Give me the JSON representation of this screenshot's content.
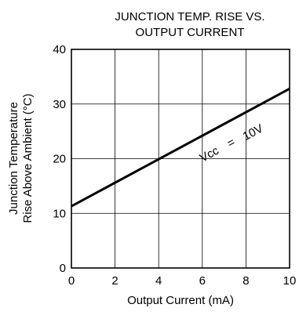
{
  "chart_data": {
    "type": "line",
    "title_lines": [
      "JUNCTION TEMP. RISE VS.",
      "OUTPUT CURRENT"
    ],
    "xlabel": "Output Current (mA)",
    "ylabel_lines": [
      "Junction Temperature",
      "Rise Above Ambient (°C)"
    ],
    "xlim": [
      0,
      10
    ],
    "ylim": [
      0,
      40
    ],
    "x_ticks": [
      0,
      2,
      4,
      6,
      8,
      10
    ],
    "y_ticks": [
      0,
      10,
      20,
      30,
      40
    ],
    "x_tick_labels": [
      "0",
      "2",
      "4",
      "6",
      "8",
      "10"
    ],
    "y_tick_labels": [
      "0",
      "10",
      "20",
      "30",
      "40"
    ],
    "grid": true,
    "series": [
      {
        "name": "Vcc = 10V",
        "x": [
          0,
          10
        ],
        "y": [
          11.3,
          32.8
        ]
      }
    ],
    "annotations": [
      {
        "text": "Vcc",
        "x": 6.4,
        "y": 20.2
      },
      {
        "text": "=",
        "x": 7.4,
        "y": 22.3
      },
      {
        "text": "10V",
        "x": 8.4,
        "y": 24.2
      }
    ]
  },
  "colors": {
    "line": "#000000",
    "grid": "#000000",
    "background": "#ffffff"
  }
}
